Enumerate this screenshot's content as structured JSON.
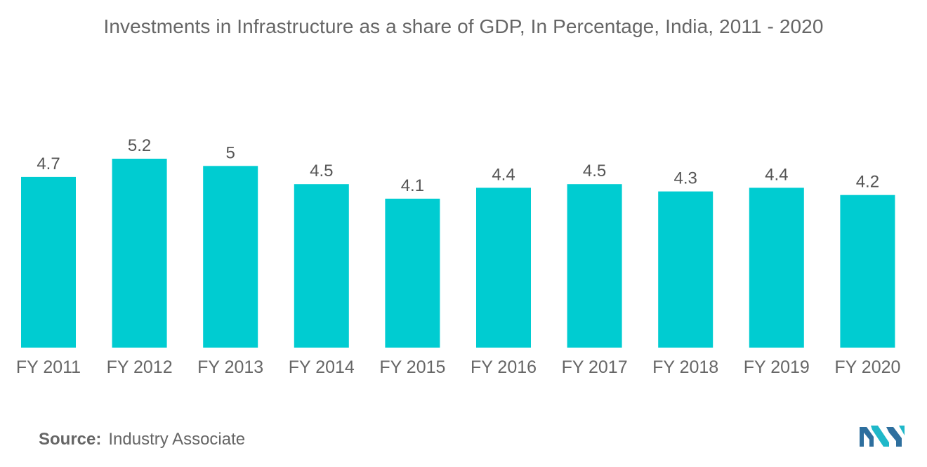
{
  "title": "Investments in Infrastructure as a share of GDP, In Percentage, India, 2011 - 2020",
  "source": {
    "label": "Source:",
    "text": "Industry Associate"
  },
  "colors": {
    "bar": "#00CCD1",
    "text": "#666666",
    "value_label": "#555555",
    "baseline": "#d9d9d9",
    "logo_dark": "#2e6f9e",
    "logo_light": "#1fb8c9"
  },
  "logo": {
    "icon": "brand-logo-icon"
  },
  "chart_data": {
    "type": "bar",
    "title": "Investments in Infrastructure as a share of GDP, In Percentage, India, 2011 - 2020",
    "categories": [
      "FY 2011",
      "FY 2012",
      "FY 2013",
      "FY 2014",
      "FY 2015",
      "FY 2016",
      "FY 2017",
      "FY 2018",
      "FY 2019",
      "FY 2020"
    ],
    "values": [
      4.7,
      5.2,
      5,
      4.5,
      4.1,
      4.4,
      4.5,
      4.3,
      4.4,
      4.2
    ],
    "value_labels": [
      "4.7",
      "5.2",
      "5",
      "4.5",
      "4.1",
      "4.4",
      "4.5",
      "4.3",
      "4.4",
      "4.2"
    ],
    "xlabel": "",
    "ylabel": "",
    "ylim": [
      0,
      5.2
    ],
    "grid": false,
    "legend": "none"
  }
}
